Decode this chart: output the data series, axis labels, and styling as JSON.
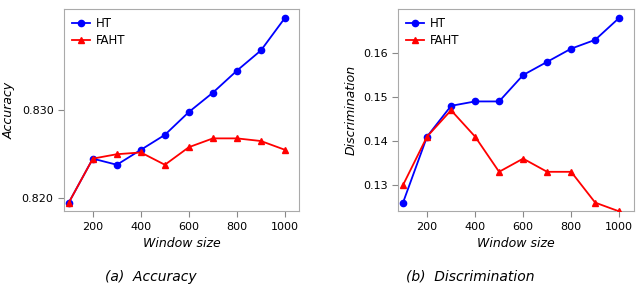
{
  "x": [
    100,
    200,
    300,
    400,
    500,
    600,
    700,
    800,
    900,
    1000
  ],
  "acc_ht": [
    0.8195,
    0.8245,
    0.8238,
    0.8255,
    0.8272,
    0.8298,
    0.832,
    0.8345,
    0.8368,
    0.8405
  ],
  "acc_faht": [
    0.8195,
    0.8245,
    0.825,
    0.8252,
    0.8238,
    0.8258,
    0.8268,
    0.8268,
    0.8265,
    0.8255
  ],
  "disc_ht": [
    0.126,
    0.141,
    0.148,
    0.149,
    0.149,
    0.155,
    0.158,
    0.161,
    0.163,
    0.168
  ],
  "disc_faht": [
    0.13,
    0.141,
    0.147,
    0.141,
    0.133,
    0.136,
    0.133,
    0.133,
    0.126,
    0.124
  ],
  "acc_ylim": [
    0.8185,
    0.8415
  ],
  "acc_yticks": [
    0.82,
    0.83
  ],
  "disc_ylim": [
    0.124,
    0.17
  ],
  "disc_yticks": [
    0.13,
    0.14,
    0.15,
    0.16
  ],
  "xticks": [
    200,
    400,
    600,
    800,
    1000
  ],
  "xlabel": "Window size",
  "ylabel_acc": "Accuracy",
  "ylabel_disc": "Discrimination",
  "label_ht": "HT",
  "label_faht": "FAHT",
  "color_ht": "#0000FF",
  "color_faht": "#FF0000",
  "caption_a": "(a)  Accuracy",
  "caption_b": "(b)  Discrimination",
  "bg_color": "#FFFFFF"
}
